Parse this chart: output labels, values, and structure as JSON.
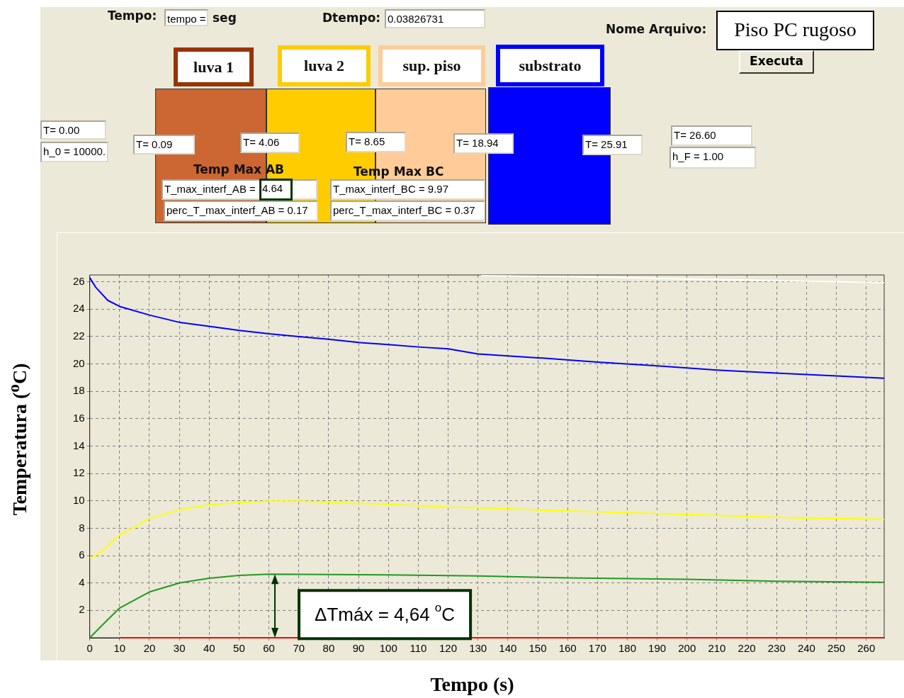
{
  "chart_data": {
    "type": "line",
    "xlabel": "Tempo (s)",
    "ylabel": "Temperatura ($^{o}$C)",
    "xlim": [
      0,
      266
    ],
    "ylim": [
      0,
      26.5
    ],
    "xticks": [
      0,
      10,
      20,
      30,
      40,
      50,
      60,
      70,
      80,
      90,
      100,
      110,
      120,
      130,
      140,
      150,
      160,
      170,
      180,
      190,
      200,
      210,
      220,
      230,
      240,
      250,
      260
    ],
    "yticks": [
      2,
      4,
      6,
      8,
      10,
      12,
      14,
      16,
      18,
      20,
      22,
      24,
      26
    ],
    "grid": true,
    "legend": false,
    "marker": "none",
    "line_style": "solid",
    "series": [
      {
        "color": "#0000ff",
        "x": [
          0,
          2,
          6,
          10,
          20,
          30,
          40,
          50,
          60,
          70,
          80,
          90,
          100,
          110,
          120,
          130,
          150,
          170,
          190,
          210,
          230,
          250,
          266
        ],
        "values": [
          26.3,
          25.6,
          24.65,
          24.2,
          23.57,
          23.04,
          22.75,
          22.45,
          22.2,
          22.0,
          21.8,
          21.57,
          21.42,
          21.24,
          21.1,
          20.73,
          20.45,
          20.14,
          19.86,
          19.55,
          19.33,
          19.12,
          18.96
        ]
      },
      {
        "color": "#ffff00",
        "x": [
          0,
          2,
          5,
          10,
          20,
          30,
          40,
          50,
          60,
          70,
          100,
          120,
          130,
          160,
          200,
          240,
          266
        ],
        "values": [
          5.83,
          6.0,
          6.5,
          7.5,
          8.7,
          9.35,
          9.72,
          9.87,
          9.98,
          9.98,
          9.74,
          9.54,
          9.5,
          9.26,
          9.0,
          8.74,
          8.66
        ]
      },
      {
        "color": "#229922",
        "x": [
          0,
          5,
          10,
          20,
          30,
          40,
          50,
          60,
          100,
          130,
          160,
          200,
          230,
          266
        ],
        "values": [
          0,
          1.1,
          2.17,
          3.35,
          4.0,
          4.35,
          4.55,
          4.64,
          4.6,
          4.52,
          4.37,
          4.27,
          4.13,
          4.05
        ]
      },
      {
        "color": "#ff0000",
        "x": [
          10,
          266
        ],
        "values": [
          0,
          0
        ]
      },
      {
        "color": "#ffffff",
        "x": [
          131,
          160,
          200,
          240,
          266
        ],
        "values": [
          26.45,
          26.38,
          26.2,
          26.05,
          25.95
        ]
      }
    ],
    "annotations": [
      "Tempo:",
      "tempo =",
      "seg",
      "Dtempo:",
      "0.03826731",
      "Nome Arquivo:",
      "Piso PC rugoso",
      "Executa",
      "luva 1",
      "luva 2",
      "sup. piso",
      "substrato",
      "T=  0.00",
      "h_0 = 10000.",
      "T=  0.09",
      "T=  4.06",
      "T=  8.65",
      "T= 18.94",
      "T= 25.91",
      "T= 26.60",
      "h_F =  1.00",
      "Temp Max AB",
      "Temp Max BC",
      "T_max_interf_AB =",
      "4.64",
      "perc_T_max_interf_AB =  0.17",
      "T_max_interf_BC =  9.97",
      "perc_T_max_interf_BC =  0.37",
      {
        "text": "ΔTmáx = 4,64 $^{o}$C",
        "x": 62,
        "y": 4.64
      }
    ]
  }
}
